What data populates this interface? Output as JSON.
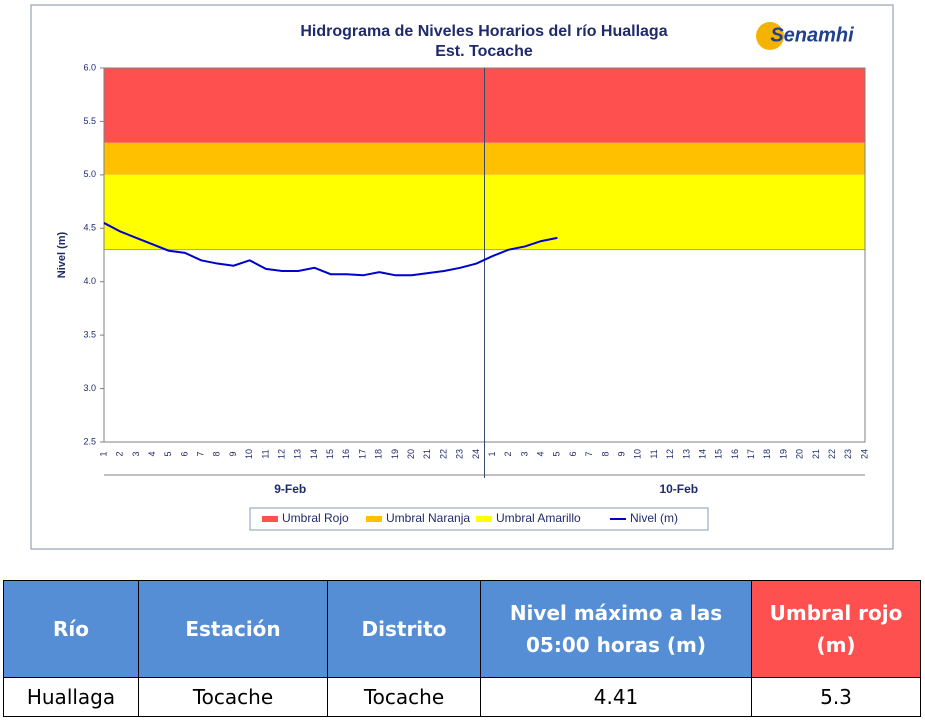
{
  "chart_data": {
    "type": "line",
    "title": "Hidrograma de Niveles Horarios del río Huallaga",
    "subtitle": "Est. Tocache",
    "logo": "Senamhi",
    "ylabel": "Nivel (m)",
    "categories": [
      "1",
      "2",
      "3",
      "4",
      "5",
      "6",
      "7",
      "8",
      "9",
      "10",
      "11",
      "12",
      "13",
      "14",
      "15",
      "16",
      "17",
      "18",
      "19",
      "20",
      "21",
      "22",
      "23",
      "24",
      "1",
      "2",
      "3",
      "4",
      "5",
      "6",
      "7",
      "8",
      "9",
      "10",
      "11",
      "12",
      "13",
      "14",
      "15",
      "16",
      "17",
      "18",
      "19",
      "20",
      "21",
      "22",
      "23",
      "24"
    ],
    "x_groups": [
      "9-Feb",
      "10-Feb"
    ],
    "ylim": [
      2.5,
      6.0
    ],
    "yticks": [
      2.5,
      {
        "value": 3,
        "label": "3.0"
      },
      3.5,
      {
        "value": 4,
        "label": "4.0"
      },
      4.5,
      {
        "value": 5,
        "label": "5.0"
      },
      5.5,
      {
        "value": 6,
        "label": "6.0"
      }
    ],
    "thresholds": [
      {
        "name": "Umbral Rojo",
        "color": "#ff5050",
        "value": 5.3
      },
      {
        "name": "Umbral Naranja",
        "color": "#ffc000",
        "value": 5.0
      },
      {
        "name": "Umbral Amarillo",
        "color": "#ffff00",
        "value": 4.3
      }
    ],
    "series": [
      {
        "name": "Nivel (m)",
        "color": "#0000cc",
        "values": [
          4.55,
          4.47,
          4.41,
          4.35,
          4.29,
          4.27,
          4.2,
          4.17,
          4.15,
          4.2,
          4.12,
          4.1,
          4.1,
          4.13,
          4.07,
          4.07,
          4.06,
          4.09,
          4.06,
          4.06,
          4.08,
          4.1,
          4.13,
          4.17,
          4.24,
          4.3,
          4.33,
          4.38,
          4.41,
          null,
          null,
          null,
          null,
          null,
          null,
          null,
          null,
          null,
          null,
          null,
          null,
          null,
          null,
          null,
          null,
          null,
          null,
          null
        ]
      }
    ]
  },
  "table": {
    "header": [
      "Río",
      "Estación",
      "Distrito",
      "Nivel máximo a las 05:00 horas (m)",
      "Umbral rojo (m)"
    ],
    "rows": [
      [
        "Huallaga",
        "Tocache",
        "Tocache",
        "4.41",
        "5.3"
      ]
    ]
  }
}
